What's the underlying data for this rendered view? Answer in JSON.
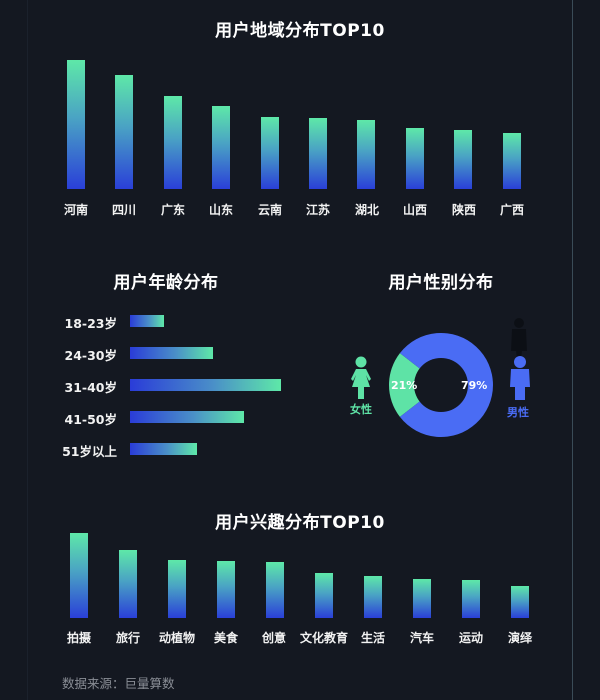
{
  "colors": {
    "background": "#141821",
    "bar_top": "#5ee8a8",
    "bar_bottom": "#2a3fd8",
    "female": "#5ee3a6",
    "male": "#4a6cf4"
  },
  "region": {
    "title": "用户地域分布TOP10",
    "labels": [
      "河南",
      "四川",
      "广东",
      "山东",
      "云南",
      "江苏",
      "湖北",
      "山西",
      "陕西",
      "广西"
    ]
  },
  "age": {
    "title": "用户年龄分布",
    "labels": [
      "18-23岁",
      "24-30岁",
      "31-40岁",
      "41-50岁",
      "51岁以上"
    ]
  },
  "gender": {
    "title": "用户性别分布",
    "female_label": "女性",
    "male_label": "男性",
    "female_pct": "21%",
    "male_pct": "79%"
  },
  "interest": {
    "title": "用户兴趣分布TOP10",
    "labels": [
      "拍摄",
      "旅行",
      "动植物",
      "美食",
      "创意",
      "文化教育",
      "生活",
      "汽车",
      "运动",
      "演绎"
    ]
  },
  "footer": {
    "source": "数据来源：巨量算数"
  },
  "chart_data": [
    {
      "type": "bar",
      "title": "用户地域分布TOP10",
      "categories": [
        "河南",
        "四川",
        "广东",
        "山东",
        "云南",
        "江苏",
        "湖北",
        "山西",
        "陕西",
        "广西"
      ],
      "values": [
        129,
        114,
        93,
        83,
        72,
        71.5,
        69.5,
        61.5,
        59,
        56
      ],
      "xlabel": "",
      "ylabel": "",
      "grid": false,
      "note": "No axis values shown; values are relative bar heights in px"
    },
    {
      "type": "bar",
      "orientation": "horizontal",
      "title": "用户年龄分布",
      "categories": [
        "18-23岁",
        "24-30岁",
        "31-40岁",
        "41-50岁",
        "51岁以上"
      ],
      "values": [
        34,
        83,
        151,
        114,
        67
      ],
      "grid": false,
      "note": "No axis values shown; values are relative bar lengths in px"
    },
    {
      "type": "pie",
      "subtype": "donut",
      "title": "用户性别分布",
      "categories": [
        "女性",
        "男性"
      ],
      "values": [
        21,
        79
      ],
      "unit": "%"
    },
    {
      "type": "bar",
      "title": "用户兴趣分布TOP10",
      "categories": [
        "拍摄",
        "旅行",
        "动植物",
        "美食",
        "创意",
        "文化教育",
        "生活",
        "汽车",
        "运动",
        "演绎"
      ],
      "values": [
        85,
        68,
        58,
        57,
        56,
        45,
        42,
        39,
        38,
        32
      ],
      "grid": false,
      "note": "No axis values shown; values are relative bar heights in px"
    }
  ]
}
